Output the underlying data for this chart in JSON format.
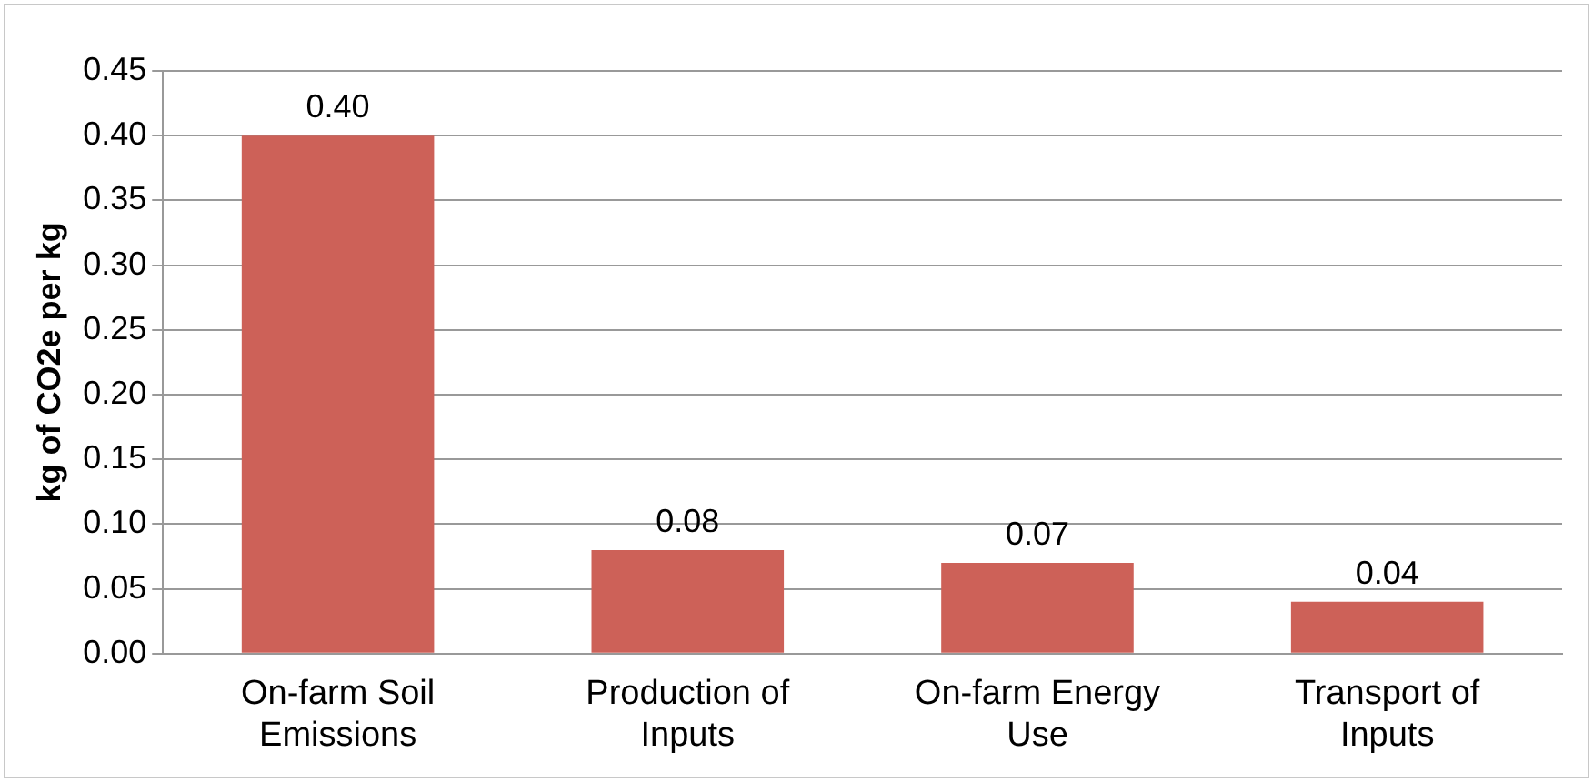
{
  "chart_data": {
    "type": "bar",
    "ylabel": "kg of CO2e per kg",
    "categories": [
      "On-farm Soil Emissions",
      "Production of Inputs",
      "On-farm Energy Use",
      "Transport of Inputs"
    ],
    "values": [
      0.4,
      0.08,
      0.07,
      0.04
    ],
    "value_labels": [
      "0.40",
      "0.08",
      "0.07",
      "0.04"
    ],
    "color": "#cd6158",
    "ylim": [
      0,
      0.45
    ],
    "yticks": [
      {
        "value": 0,
        "label": "0.00"
      },
      {
        "value": 0.05,
        "label": "0.05"
      },
      {
        "value": 0.1,
        "label": "0.10"
      },
      {
        "value": 0.15,
        "label": "0.15"
      },
      {
        "value": 0.2,
        "label": "0.20"
      },
      {
        "value": 0.25,
        "label": "0.25"
      },
      {
        "value": 0.3,
        "label": "0.30"
      },
      {
        "value": 0.35,
        "label": "0.35"
      },
      {
        "value": 0.4,
        "label": "0.40"
      },
      {
        "value": 0.45,
        "label": "0.45"
      }
    ],
    "grid": "y"
  }
}
